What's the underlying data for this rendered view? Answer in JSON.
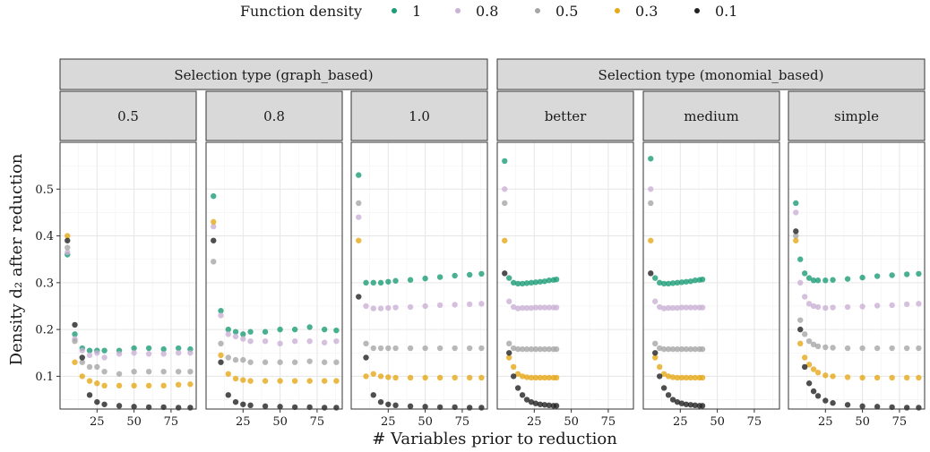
{
  "chart_data": {
    "type": "scatter",
    "legend": {
      "title": "Function density",
      "placement": "top",
      "entries": [
        {
          "label": "1",
          "color": "#1b9e77"
        },
        {
          "label": "0.8",
          "color": "#cab2d6"
        },
        {
          "label": "0.5",
          "color": "#a6a6a6"
        },
        {
          "label": "0.3",
          "color": "#e6a817"
        },
        {
          "label": "0.1",
          "color": "#222222"
        }
      ]
    },
    "xlabel": "# Variables prior to reduction",
    "ylabel": "Density d₂ after reduction",
    "xlim": [
      0,
      92
    ],
    "ylim": [
      0.03,
      0.6
    ],
    "xticks": [
      25,
      50,
      75
    ],
    "yticks": [
      0.1,
      0.2,
      0.3,
      0.4,
      0.5
    ],
    "grid": true,
    "groups": [
      {
        "label": "Selection type (graph_based)",
        "panels": [
          0,
          1,
          2
        ]
      },
      {
        "label": "Selection type (monomial_based)",
        "panels": [
          3,
          4,
          5
        ]
      }
    ],
    "panels": [
      {
        "label": "0.5",
        "series": [
          {
            "name": "1",
            "x": [
              5,
              10,
              15,
              20,
              25,
              30,
              40,
              50,
              60,
              70,
              80,
              88
            ],
            "y": [
              0.36,
              0.19,
              0.16,
              0.155,
              0.155,
              0.155,
              0.155,
              0.16,
              0.16,
              0.158,
              0.16,
              0.158
            ]
          },
          {
            "name": "0.8",
            "x": [
              5,
              10,
              15,
              20,
              25,
              30,
              40,
              50,
              60,
              70,
              80,
              88
            ],
            "y": [
              0.365,
              0.18,
              0.155,
              0.145,
              0.15,
              0.14,
              0.148,
              0.15,
              0.148,
              0.148,
              0.15,
              0.15
            ]
          },
          {
            "name": "0.5",
            "x": [
              5,
              10,
              15,
              20,
              25,
              30,
              40,
              50,
              60,
              70,
              80,
              88
            ],
            "y": [
              0.375,
              0.175,
              0.13,
              0.12,
              0.12,
              0.11,
              0.105,
              0.11,
              0.11,
              0.11,
              0.11,
              0.11
            ]
          },
          {
            "name": "0.3",
            "x": [
              5,
              10,
              15,
              20,
              25,
              30,
              40,
              50,
              60,
              70,
              80,
              88
            ],
            "y": [
              0.4,
              0.13,
              0.1,
              0.09,
              0.085,
              0.08,
              0.08,
              0.08,
              0.08,
              0.08,
              0.082,
              0.083
            ]
          },
          {
            "name": "0.1",
            "x": [
              5,
              10,
              15,
              20,
              25,
              30,
              40,
              50,
              60,
              70,
              80,
              88
            ],
            "y": [
              0.39,
              0.21,
              0.14,
              0.06,
              0.045,
              0.04,
              0.037,
              0.035,
              0.034,
              0.034,
              0.033,
              0.033
            ]
          }
        ]
      },
      {
        "label": "0.8",
        "series": [
          {
            "name": "1",
            "x": [
              5,
              10,
              15,
              20,
              25,
              30,
              40,
              50,
              60,
              70,
              80,
              88
            ],
            "y": [
              0.485,
              0.24,
              0.2,
              0.195,
              0.19,
              0.195,
              0.195,
              0.2,
              0.2,
              0.205,
              0.2,
              0.198
            ]
          },
          {
            "name": "0.8",
            "x": [
              5,
              10,
              15,
              20,
              25,
              30,
              40,
              50,
              60,
              70,
              80,
              88
            ],
            "y": [
              0.42,
              0.23,
              0.19,
              0.185,
              0.18,
              0.175,
              0.175,
              0.17,
              0.175,
              0.175,
              0.172,
              0.175
            ]
          },
          {
            "name": "0.5",
            "x": [
              5,
              10,
              15,
              20,
              25,
              30,
              40,
              50,
              60,
              70,
              80,
              88
            ],
            "y": [
              0.345,
              0.17,
              0.14,
              0.135,
              0.135,
              0.13,
              0.13,
              0.13,
              0.13,
              0.132,
              0.13,
              0.13
            ]
          },
          {
            "name": "0.3",
            "x": [
              5,
              10,
              15,
              20,
              25,
              30,
              40,
              50,
              60,
              70,
              80,
              88
            ],
            "y": [
              0.43,
              0.145,
              0.105,
              0.095,
              0.092,
              0.09,
              0.09,
              0.09,
              0.09,
              0.09,
              0.09,
              0.09
            ]
          },
          {
            "name": "0.1",
            "x": [
              5,
              10,
              15,
              20,
              25,
              30,
              40,
              50,
              60,
              70,
              80,
              88
            ],
            "y": [
              0.39,
              0.13,
              0.06,
              0.045,
              0.04,
              0.038,
              0.036,
              0.035,
              0.034,
              0.034,
              0.033,
              0.033
            ]
          }
        ]
      },
      {
        "label": "1.0",
        "series": [
          {
            "name": "1",
            "x": [
              5,
              10,
              15,
              20,
              25,
              30,
              40,
              50,
              60,
              70,
              80,
              88
            ],
            "y": [
              0.53,
              0.3,
              0.3,
              0.3,
              0.302,
              0.304,
              0.306,
              0.309,
              0.312,
              0.315,
              0.317,
              0.319
            ]
          },
          {
            "name": "0.8",
            "x": [
              5,
              10,
              15,
              20,
              25,
              30,
              40,
              50,
              60,
              70,
              80,
              88
            ],
            "y": [
              0.44,
              0.25,
              0.245,
              0.245,
              0.246,
              0.247,
              0.248,
              0.25,
              0.252,
              0.253,
              0.254,
              0.255
            ]
          },
          {
            "name": "0.5",
            "x": [
              5,
              10,
              15,
              20,
              25,
              30,
              40,
              50,
              60,
              70,
              80,
              88
            ],
            "y": [
              0.47,
              0.17,
              0.16,
              0.16,
              0.16,
              0.16,
              0.16,
              0.16,
              0.16,
              0.16,
              0.16,
              0.16
            ]
          },
          {
            "name": "0.3",
            "x": [
              5,
              10,
              15,
              20,
              25,
              30,
              40,
              50,
              60,
              70,
              80,
              88
            ],
            "y": [
              0.39,
              0.1,
              0.105,
              0.1,
              0.098,
              0.097,
              0.097,
              0.097,
              0.097,
              0.097,
              0.097,
              0.097
            ]
          },
          {
            "name": "0.1",
            "x": [
              5,
              10,
              15,
              20,
              25,
              30,
              40,
              50,
              60,
              70,
              80,
              88
            ],
            "y": [
              0.27,
              0.14,
              0.06,
              0.045,
              0.04,
              0.038,
              0.036,
              0.035,
              0.034,
              0.034,
              0.033,
              0.033
            ]
          }
        ]
      },
      {
        "label": "better",
        "series": [
          {
            "name": "1",
            "x": [
              5,
              8,
              11,
              14,
              17,
              20,
              23,
              26,
              29,
              32,
              35,
              38,
              40
            ],
            "y": [
              0.56,
              0.31,
              0.3,
              0.298,
              0.298,
              0.299,
              0.3,
              0.301,
              0.302,
              0.303,
              0.305,
              0.306,
              0.307
            ]
          },
          {
            "name": "0.8",
            "x": [
              5,
              8,
              11,
              14,
              17,
              20,
              23,
              26,
              29,
              32,
              35,
              38,
              40
            ],
            "y": [
              0.5,
              0.26,
              0.248,
              0.245,
              0.246,
              0.246,
              0.246,
              0.247,
              0.247,
              0.247,
              0.247,
              0.247,
              0.247
            ]
          },
          {
            "name": "0.5",
            "x": [
              5,
              8,
              11,
              14,
              17,
              20,
              23,
              26,
              29,
              32,
              35,
              38,
              40
            ],
            "y": [
              0.47,
              0.17,
              0.16,
              0.158,
              0.158,
              0.158,
              0.158,
              0.158,
              0.158,
              0.158,
              0.158,
              0.158,
              0.158
            ]
          },
          {
            "name": "0.3",
            "x": [
              5,
              8,
              11,
              14,
              17,
              20,
              23,
              26,
              29,
              32,
              35,
              38,
              40
            ],
            "y": [
              0.39,
              0.14,
              0.12,
              0.105,
              0.1,
              0.098,
              0.097,
              0.097,
              0.097,
              0.097,
              0.097,
              0.097,
              0.097
            ]
          },
          {
            "name": "0.1",
            "x": [
              5,
              8,
              11,
              14,
              17,
              20,
              23,
              26,
              29,
              32,
              35,
              38,
              40
            ],
            "y": [
              0.32,
              0.15,
              0.1,
              0.075,
              0.06,
              0.05,
              0.045,
              0.042,
              0.04,
              0.039,
              0.038,
              0.037,
              0.037
            ]
          }
        ]
      },
      {
        "label": "medium",
        "series": [
          {
            "name": "1",
            "x": [
              5,
              8,
              11,
              14,
              17,
              20,
              23,
              26,
              29,
              32,
              35,
              38,
              40
            ],
            "y": [
              0.565,
              0.31,
              0.3,
              0.298,
              0.298,
              0.299,
              0.3,
              0.301,
              0.302,
              0.303,
              0.305,
              0.306,
              0.307
            ]
          },
          {
            "name": "0.8",
            "x": [
              5,
              8,
              11,
              14,
              17,
              20,
              23,
              26,
              29,
              32,
              35,
              38,
              40
            ],
            "y": [
              0.5,
              0.26,
              0.248,
              0.245,
              0.246,
              0.246,
              0.246,
              0.247,
              0.247,
              0.247,
              0.247,
              0.247,
              0.247
            ]
          },
          {
            "name": "0.5",
            "x": [
              5,
              8,
              11,
              14,
              17,
              20,
              23,
              26,
              29,
              32,
              35,
              38,
              40
            ],
            "y": [
              0.47,
              0.17,
              0.16,
              0.158,
              0.158,
              0.158,
              0.158,
              0.158,
              0.158,
              0.158,
              0.158,
              0.158,
              0.158
            ]
          },
          {
            "name": "0.3",
            "x": [
              5,
              8,
              11,
              14,
              17,
              20,
              23,
              26,
              29,
              32,
              35,
              38,
              40
            ],
            "y": [
              0.39,
              0.14,
              0.12,
              0.105,
              0.1,
              0.098,
              0.097,
              0.097,
              0.097,
              0.097,
              0.097,
              0.097,
              0.097
            ]
          },
          {
            "name": "0.1",
            "x": [
              5,
              8,
              11,
              14,
              17,
              20,
              23,
              26,
              29,
              32,
              35,
              38,
              40
            ],
            "y": [
              0.32,
              0.15,
              0.1,
              0.075,
              0.06,
              0.05,
              0.045,
              0.042,
              0.04,
              0.039,
              0.038,
              0.037,
              0.037
            ]
          }
        ]
      },
      {
        "label": "simple",
        "series": [
          {
            "name": "1",
            "x": [
              5,
              8,
              11,
              14,
              17,
              20,
              25,
              30,
              40,
              50,
              60,
              70,
              80,
              88
            ],
            "y": [
              0.47,
              0.35,
              0.32,
              0.31,
              0.305,
              0.305,
              0.305,
              0.306,
              0.308,
              0.311,
              0.314,
              0.316,
              0.318,
              0.319
            ]
          },
          {
            "name": "0.8",
            "x": [
              5,
              8,
              11,
              14,
              17,
              20,
              25,
              30,
              40,
              50,
              60,
              70,
              80,
              88
            ],
            "y": [
              0.45,
              0.3,
              0.27,
              0.255,
              0.25,
              0.248,
              0.246,
              0.247,
              0.248,
              0.249,
              0.251,
              0.252,
              0.254,
              0.255
            ]
          },
          {
            "name": "0.5",
            "x": [
              5,
              8,
              11,
              14,
              17,
              20,
              25,
              30,
              40,
              50,
              60,
              70,
              80,
              88
            ],
            "y": [
              0.4,
              0.22,
              0.19,
              0.175,
              0.168,
              0.164,
              0.162,
              0.161,
              0.16,
              0.16,
              0.16,
              0.16,
              0.16,
              0.16
            ]
          },
          {
            "name": "0.3",
            "x": [
              5,
              8,
              11,
              14,
              17,
              20,
              25,
              30,
              40,
              50,
              60,
              70,
              80,
              88
            ],
            "y": [
              0.39,
              0.17,
              0.14,
              0.125,
              0.115,
              0.108,
              0.102,
              0.1,
              0.098,
              0.097,
              0.097,
              0.097,
              0.097,
              0.097
            ]
          },
          {
            "name": "0.1",
            "x": [
              5,
              8,
              11,
              14,
              17,
              20,
              25,
              30,
              40,
              50,
              60,
              70,
              80,
              88
            ],
            "y": [
              0.41,
              0.2,
              0.12,
              0.085,
              0.068,
              0.058,
              0.048,
              0.043,
              0.039,
              0.036,
              0.035,
              0.034,
              0.033,
              0.033
            ]
          }
        ]
      }
    ]
  }
}
